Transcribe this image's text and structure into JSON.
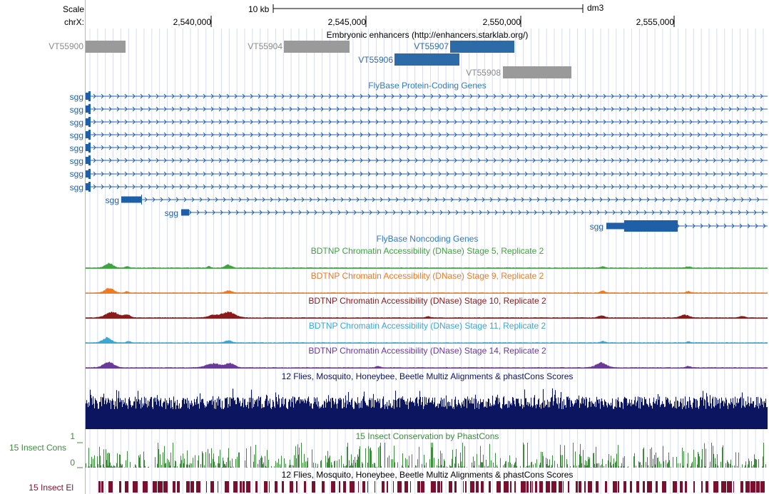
{
  "header": {
    "scale_label": "Scale",
    "chrom_label": "chrX:",
    "scale_bar_label": "10 kb",
    "assembly": "dm3",
    "positions": [
      "2,540,000",
      "2,545,000",
      "2,550,000",
      "2,555,000"
    ]
  },
  "tracks": {
    "enhancers": {
      "title": "Embryonic enhancers (http://enhancers.starklab.org/)",
      "items": [
        {
          "name": "VT55900",
          "highlight": false
        },
        {
          "name": "VT55904",
          "highlight": false
        },
        {
          "name": "VT55907",
          "highlight": true
        },
        {
          "name": "VT55906",
          "highlight": true
        },
        {
          "name": "VT55908",
          "highlight": false
        }
      ]
    },
    "flybase_coding": {
      "title": "FlyBase Protein-Coding Genes",
      "gene_name": "sgg"
    },
    "flybase_noncoding": {
      "title": "FlyBase Noncoding Genes"
    },
    "dnase": [
      {
        "title": "BDTNP Chromatin Accessibility (DNase) Stage 5, Replicate 2",
        "color": "#3fa33f"
      },
      {
        "title": "BDTNP Chromatin Accessibility (DNase) Stage 9, Replicate 2",
        "color": "#f07a1e"
      },
      {
        "title": "BDTNP Chromatin Accessibility (DNase) Stage 10, Replicate 2",
        "color": "#8b1a1a"
      },
      {
        "title": "BDTNP Chromatin Accessibility (DNase) Stage 11, Replicate 2",
        "color": "#3ba8d4"
      },
      {
        "title": "BDTNP Chromatin Accessibility (DNase) Stage 14, Replicate 2",
        "color": "#6a3a9a"
      }
    ],
    "multiz": {
      "title": "12 Flies, Mosquito, Honeybee, Beetle Multiz Alignments & phastCons Scores",
      "color": "#0c1560"
    },
    "phastcons": {
      "title": "15 Insect Conservation by PhastCons",
      "side_label": "15 Insect Cons",
      "axis_max": "1",
      "axis_min": "0",
      "color": "#3f8a3f"
    },
    "elements": {
      "title": "12 Flies, Mosquito, Honeybee, Beetle Multiz Alignments & phastCons Scores",
      "side_label": "15 Insect El",
      "color": "#7a0f2e"
    }
  },
  "colors": {
    "gene_blue": "#1f5fa8",
    "enhancer_gray": "#9a9a9a",
    "enhancer_blue": "#2c6aa8",
    "label_gray": "#8a8a8a",
    "title_blue": "#2e7bc4",
    "grid": "#d8dcf4",
    "left_rule": "#f0a0a0"
  }
}
